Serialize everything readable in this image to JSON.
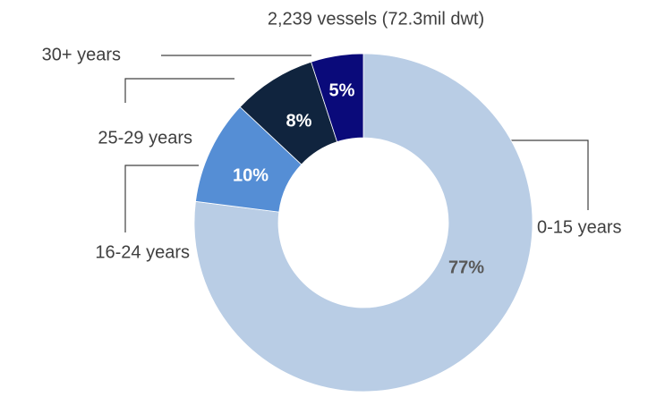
{
  "chart_data": {
    "type": "donut",
    "title": "2,239 vessels  (72.3mil dwt)",
    "categories": [
      "0-15 years",
      "16-24 years",
      "25-29 years",
      "30+ years"
    ],
    "values": [
      77,
      10,
      8,
      5
    ],
    "value_labels": [
      "77%",
      "10%",
      "8%",
      "5%"
    ],
    "colors": [
      "#b9cde5",
      "#558ed5",
      "#10243e",
      "#0a0a7a"
    ]
  }
}
